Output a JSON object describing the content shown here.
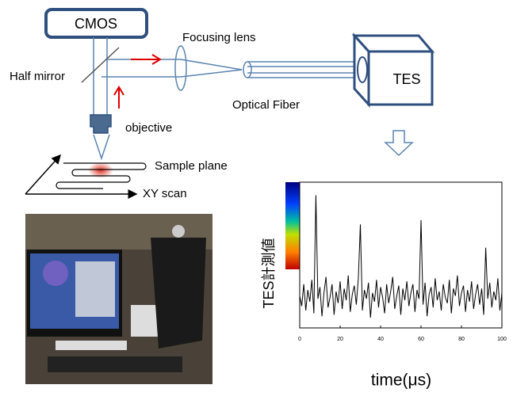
{
  "labels": {
    "cmos": "CMOS",
    "focusing_lens": "Focusing lens",
    "half_mirror": "Half mirror",
    "tes": "TES",
    "optical_fiber": "Optical Fiber",
    "objective": "objective",
    "sample_plane": "Sample plane",
    "xy_scan": "XY scan"
  },
  "chart_data": {
    "type": "line",
    "ylabel": "TES計測値",
    "xlabel": "time(μs)",
    "color": "#000000",
    "x": [
      0,
      1,
      2,
      3,
      4,
      5,
      6,
      7,
      8,
      9,
      10,
      11,
      12,
      13,
      14,
      15,
      16,
      17,
      18,
      19,
      20,
      21,
      22,
      23,
      24,
      25,
      26,
      27,
      28,
      29,
      30,
      31,
      32,
      33,
      34,
      35,
      36,
      37,
      38,
      39,
      40,
      41,
      42,
      43,
      44,
      45,
      46,
      47,
      48,
      49,
      50,
      51,
      52,
      53,
      54,
      55,
      56,
      57,
      58,
      59,
      60,
      61,
      62,
      63,
      64,
      65,
      66,
      67,
      68,
      69,
      70,
      71,
      72,
      73,
      74,
      75,
      76,
      77,
      78,
      79,
      80,
      81,
      82,
      83,
      84,
      85,
      86,
      87,
      88,
      89,
      90,
      91,
      92,
      93,
      94,
      95,
      96,
      97,
      98,
      99,
      100
    ],
    "values": [
      0.22,
      0.15,
      0.3,
      0.12,
      0.26,
      0.18,
      0.33,
      0.1,
      0.91,
      0.2,
      0.28,
      0.08,
      0.24,
      0.35,
      0.14,
      0.21,
      0.3,
      0.09,
      0.25,
      0.17,
      0.32,
      0.13,
      0.27,
      0.19,
      0.36,
      0.11,
      0.23,
      0.29,
      0.16,
      0.34,
      0.71,
      0.12,
      0.26,
      0.2,
      0.31,
      0.07,
      0.24,
      0.18,
      0.33,
      0.14,
      0.28,
      0.21,
      0.1,
      0.3,
      0.17,
      0.25,
      0.35,
      0.13,
      0.22,
      0.29,
      0.09,
      0.27,
      0.19,
      0.32,
      0.15,
      0.24,
      0.3,
      0.11,
      0.26,
      0.2,
      0.74,
      0.16,
      0.31,
      0.08,
      0.23,
      0.28,
      0.14,
      0.34,
      0.19,
      0.25,
      0.12,
      0.3,
      0.21,
      0.17,
      0.33,
      0.1,
      0.27,
      0.22,
      0.36,
      0.15,
      0.24,
      0.29,
      0.11,
      0.26,
      0.18,
      0.32,
      0.13,
      0.23,
      0.3,
      0.16,
      0.27,
      0.09,
      0.55,
      0.2,
      0.31,
      0.14,
      0.25,
      0.19,
      0.34,
      0.12,
      0.24
    ],
    "xlim": [
      0,
      100
    ],
    "xticks": [
      0,
      20,
      40,
      60,
      80,
      100
    ],
    "ylim": [
      0,
      1
    ]
  }
}
